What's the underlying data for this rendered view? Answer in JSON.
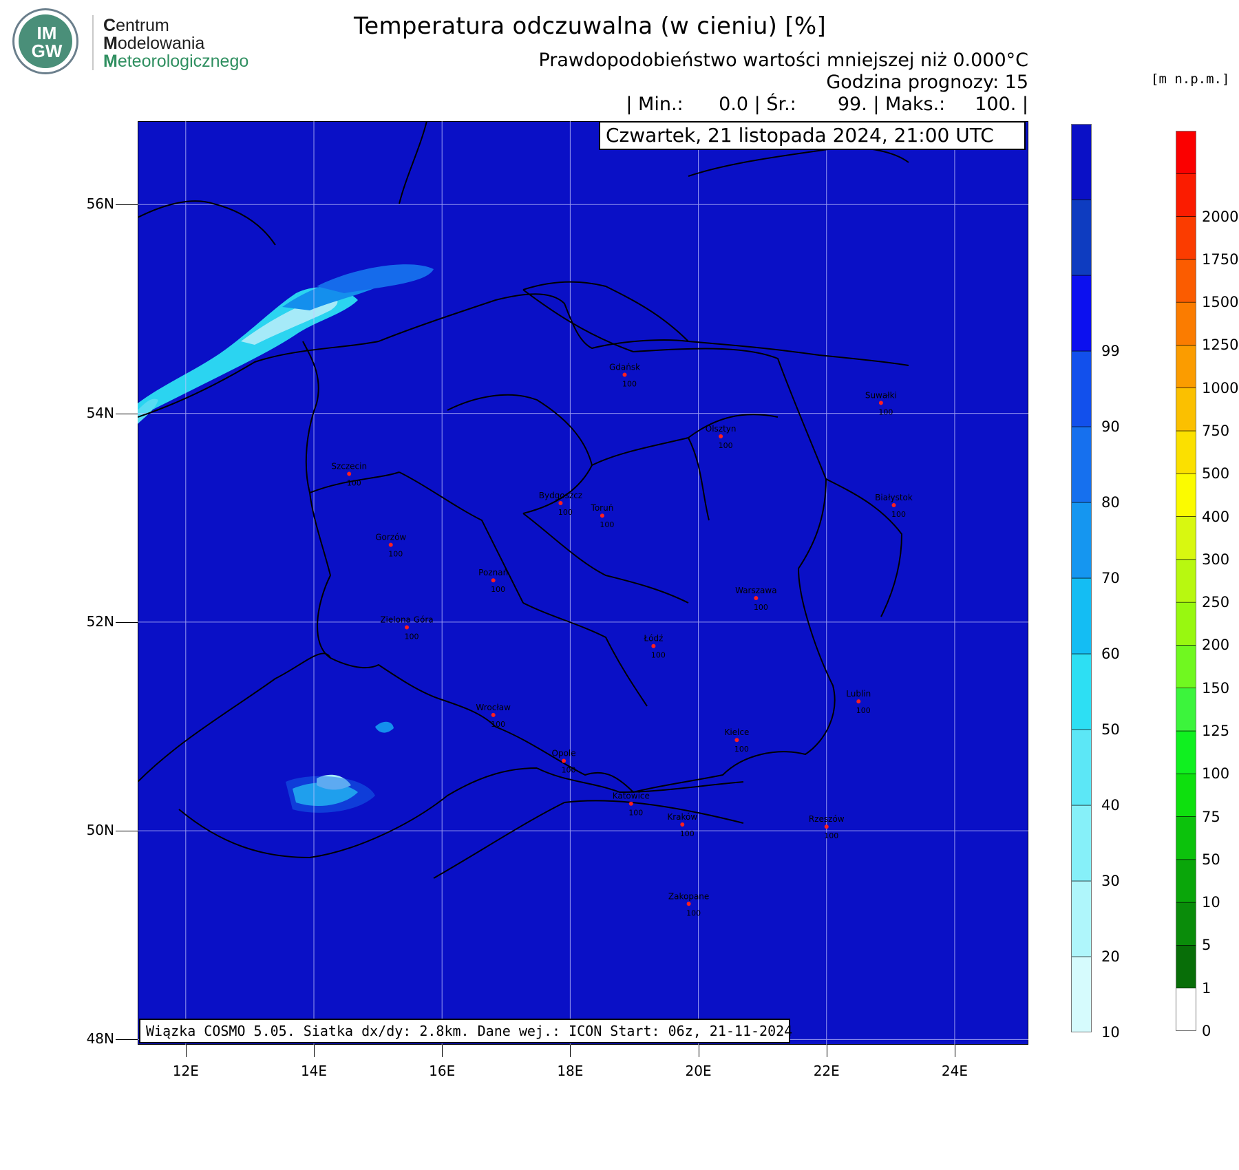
{
  "logo": {
    "badge": "IM\nGW",
    "org_line1_initial": "C",
    "org_line1_rest": "entrum",
    "org_line2_initial": "M",
    "org_line2_rest": "odelowania",
    "org_line3_initial": "M",
    "org_line3_rest": "eteorologicznego"
  },
  "header": {
    "title": "Temperatura odczuwalna (w cieniu) [%]",
    "subtitle1": "Prawdopodobieństwo wartości mniejszej niż 0.000°C",
    "subtitle2": "Godzina prognozy: 15",
    "subtitle3": "| Min.:      0.0 | Śr.:       99. | Maks.:     100. |"
  },
  "map": {
    "date_label": "Czwartek, 21 listopada 2024, 21:00 UTC",
    "footer_label": "Wiązka COSMO 5.05. Siatka dx/dy: 2.8km. Dane wej.: ICON Start: 06z, 21-11-2024",
    "background_color": "#0a10c6",
    "lon_range": [
      11.25,
      25.15
    ],
    "lat_range": [
      47.95,
      56.8
    ],
    "lat_ticks": [
      "56N",
      "54N",
      "52N",
      "50N",
      "48N"
    ],
    "lat_values": [
      56,
      54,
      52,
      50,
      48
    ],
    "lon_ticks": [
      "12E",
      "14E",
      "16E",
      "18E",
      "20E",
      "22E",
      "24E"
    ],
    "lon_values": [
      12,
      14,
      16,
      18,
      20,
      22,
      24
    ],
    "cities": [
      {
        "name": "Gdańsk",
        "value": "100",
        "lon": 18.85,
        "lat": 54.37
      },
      {
        "name": "Suwałki",
        "value": "100",
        "lon": 22.85,
        "lat": 54.1
      },
      {
        "name": "Olsztyn",
        "value": "100",
        "lon": 20.35,
        "lat": 53.78
      },
      {
        "name": "Szczecin",
        "value": "100",
        "lon": 14.55,
        "lat": 53.42
      },
      {
        "name": "Bydgoszcz",
        "value": "100",
        "lon": 17.85,
        "lat": 53.14
      },
      {
        "name": "Toruń",
        "value": "100",
        "lon": 18.5,
        "lat": 53.02
      },
      {
        "name": "Białystok",
        "value": "100",
        "lon": 23.05,
        "lat": 53.12
      },
      {
        "name": "Gorzów",
        "value": "100",
        "lon": 15.2,
        "lat": 52.74
      },
      {
        "name": "Poznań",
        "value": "100",
        "lon": 16.8,
        "lat": 52.4
      },
      {
        "name": "Warszawa",
        "value": "100",
        "lon": 20.9,
        "lat": 52.23
      },
      {
        "name": "Zielona Góra",
        "value": "100",
        "lon": 15.45,
        "lat": 51.95
      },
      {
        "name": "Łódź",
        "value": "100",
        "lon": 19.3,
        "lat": 51.77
      },
      {
        "name": "Lublin",
        "value": "100",
        "lon": 22.5,
        "lat": 51.24
      },
      {
        "name": "Wrocław",
        "value": "100",
        "lon": 16.8,
        "lat": 51.11
      },
      {
        "name": "Kielce",
        "value": "100",
        "lon": 20.6,
        "lat": 50.87
      },
      {
        "name": "Opole",
        "value": "100",
        "lon": 17.9,
        "lat": 50.67
      },
      {
        "name": "Katowice",
        "value": "100",
        "lon": 18.95,
        "lat": 50.26
      },
      {
        "name": "Kraków",
        "value": "100",
        "lon": 19.75,
        "lat": 50.06
      },
      {
        "name": "Rzeszów",
        "value": "100",
        "lon": 22.0,
        "lat": 50.04
      },
      {
        "name": "Zakopane",
        "value": "100",
        "lon": 19.85,
        "lat": 49.3
      }
    ]
  },
  "colorbar_probability": {
    "labels": [
      "10",
      "20",
      "30",
      "40",
      "50",
      "60",
      "70",
      "80",
      "90",
      "99"
    ],
    "colors": [
      "#d6fbfd",
      "#aff6fb",
      "#86f0f9",
      "#5ce7f6",
      "#2ddff3",
      "#14bdf3",
      "#1596f0",
      "#1670ee",
      "#1250ec",
      "#0c10ef",
      "#0e3cc0",
      "#0a10c6"
    ]
  },
  "colorbar_elevation": {
    "unit": "[m n.p.m.]",
    "labels": [
      "0",
      "1",
      "5",
      "10",
      "50",
      "75",
      "100",
      "125",
      "150",
      "200",
      "250",
      "300",
      "400",
      "500",
      "750",
      "1000",
      "1250",
      "1500",
      "1750",
      "2000"
    ],
    "colors": [
      "#ffffff",
      "#086e08",
      "#0a8c0a",
      "#0aa60a",
      "#0cc20c",
      "#0ee00e",
      "#10f020",
      "#3cf43c",
      "#70f820",
      "#98f810",
      "#b8f810",
      "#d8f810",
      "#fbfb00",
      "#fbe000",
      "#fbc000",
      "#fb9c00",
      "#fb7c00",
      "#fb5c00",
      "#fb3c00",
      "#fb1c00",
      "#fb0000"
    ]
  }
}
